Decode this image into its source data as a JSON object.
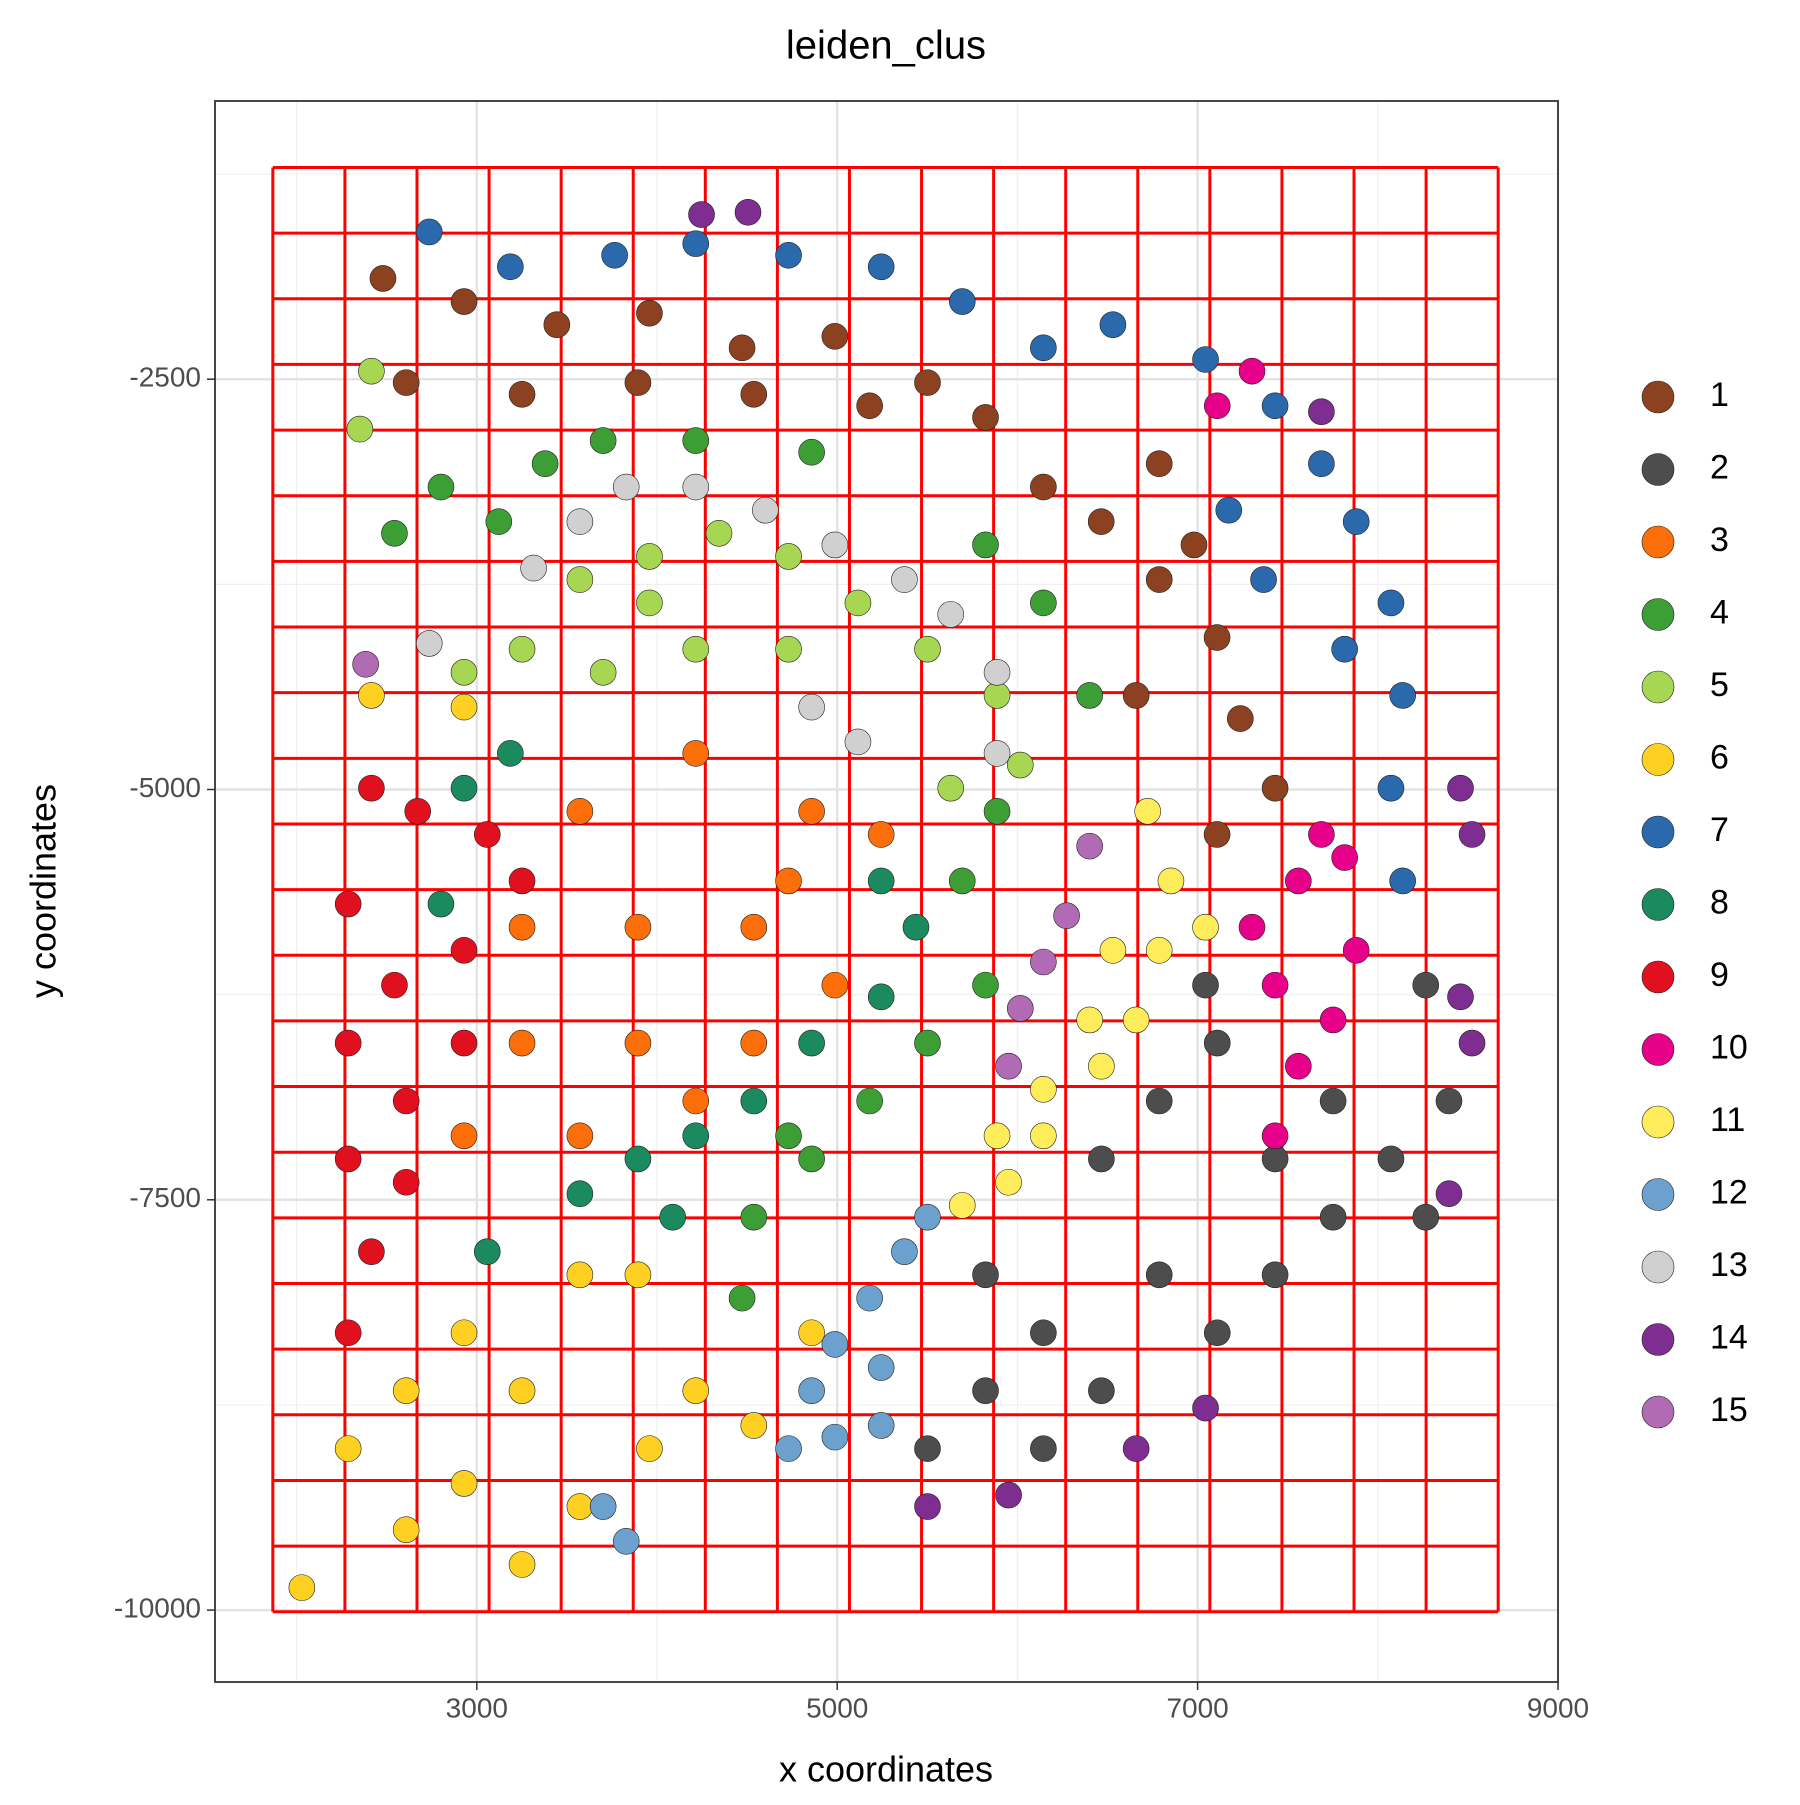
{
  "chart_data": {
    "type": "scatter",
    "title": "leiden_clus",
    "x_label": "x coordinates",
    "y_label": "y coordinates",
    "xlim": [
      1547,
      9000
    ],
    "ylim": [
      -10438,
      -805
    ],
    "xticks": [
      3000,
      5000,
      7000,
      9000
    ],
    "yticks": [
      -2500,
      -5000,
      -7500,
      -10000
    ],
    "grid": true,
    "patch_grid": {
      "x0": 1868,
      "y0": -10010,
      "step": 400,
      "ncols": 17,
      "nrows": 22,
      "color": "#ff0000"
    },
    "series": [
      {
        "name": "1",
        "color": "#8c4220",
        "x": [
          2479,
          2929,
          3444,
          3958,
          4472,
          4987,
          5501,
          5823,
          2608,
          3251,
          3894,
          4537,
          5180,
          6144,
          6465,
          6787,
          7108,
          7237,
          7430,
          7108,
          6787,
          6659,
          6980
        ],
        "values": [
          -1886,
          -2027,
          -2168,
          -2098,
          -2309,
          -2239,
          -2521,
          -2733,
          -2521,
          -2592,
          -2521,
          -2592,
          -2662,
          -3157,
          -3368,
          -3721,
          -4074,
          -4568,
          -4992,
          -5274,
          -3015,
          -4427,
          -3510
        ]
      },
      {
        "name": "2",
        "color": "#4d4d4d",
        "x": [
          5823,
          6144,
          6466,
          6787,
          7109,
          7430,
          7752,
          8073,
          6787,
          7109,
          6144,
          5501,
          5823,
          6466,
          7430,
          8266,
          8395,
          8266,
          7044,
          7752
        ],
        "values": [
          -7957,
          -8310,
          -7251,
          -6898,
          -6545,
          -7251,
          -7606,
          -7251,
          -7957,
          -8310,
          -9016,
          -9016,
          -8663,
          -8663,
          -7957,
          -6192,
          -6898,
          -7606,
          -6192,
          -6898
        ]
      },
      {
        "name": "3",
        "color": "#fb6e0a",
        "x": [
          3572,
          4215,
          4858,
          5244,
          3251,
          3894,
          4537,
          4987,
          3251,
          3894,
          4537,
          2929,
          3572,
          4215,
          4730
        ],
        "values": [
          -5133,
          -4780,
          -5133,
          -5274,
          -5839,
          -5839,
          -5839,
          -6192,
          -6545,
          -6545,
          -6545,
          -7110,
          -7110,
          -6898,
          -5557
        ]
      },
      {
        "name": "4",
        "color": "#3e9e36",
        "x": [
          2543,
          2801,
          3122,
          3379,
          3701,
          4215,
          4858,
          5823,
          6144,
          6401,
          5887,
          5694,
          5823,
          5501,
          5180,
          4858,
          4537,
          4472,
          4730
        ],
        "values": [
          -3439,
          -3157,
          -3368,
          -3015,
          -2874,
          -2874,
          -2945,
          -3510,
          -3863,
          -4427,
          -5133,
          -5557,
          -6192,
          -6545,
          -6898,
          -7251,
          -7606,
          -8099,
          -7110
        ]
      },
      {
        "name": "5",
        "color": "#a6d652",
        "x": [
          3572,
          3958,
          4344,
          4730,
          5115,
          5501,
          3251,
          3701,
          4215,
          4730,
          5887,
          6016,
          5630,
          2415,
          2351,
          2929,
          3958
        ],
        "values": [
          -3721,
          -3580,
          -3439,
          -3580,
          -3863,
          -4145,
          -4145,
          -4286,
          -4145,
          -4145,
          -4427,
          -4851,
          -4992,
          -2451,
          -2804,
          -4286,
          -3863
        ]
      },
      {
        "name": "6",
        "color": "#fdd021",
        "x": [
          2286,
          2608,
          2929,
          3251,
          3572,
          3894,
          4215,
          2929,
          3572,
          2608,
          3251,
          2029,
          4537,
          4858,
          3958,
          2929,
          2415
        ],
        "values": [
          -9016,
          -8663,
          -8310,
          -8663,
          -7957,
          -7957,
          -8663,
          -9228,
          -9369,
          -9510,
          -9722,
          -9863,
          -8875,
          -8310,
          -9016,
          -4498,
          -4427
        ]
      },
      {
        "name": "7",
        "color": "#2b69ad",
        "x": [
          3765,
          4215,
          4730,
          5244,
          5694,
          6144,
          6530,
          7044,
          7430,
          7687,
          7880,
          8073,
          8138,
          8073,
          8138,
          3186,
          2736,
          7173,
          7366,
          7816
        ],
        "values": [
          -1745,
          -1674,
          -1745,
          -1815,
          -2027,
          -2309,
          -2168,
          -2380,
          -2662,
          -3015,
          -3368,
          -3863,
          -4427,
          -4992,
          -5557,
          -1815,
          -1603,
          -3298,
          -3721,
          -4145
        ]
      },
      {
        "name": "8",
        "color": "#1b8a5f",
        "x": [
          5244,
          5437,
          5244,
          4858,
          4537,
          4215,
          3894,
          3572,
          3058,
          2929,
          3186,
          2801,
          4087
        ],
        "values": [
          -5557,
          -5839,
          -6263,
          -6545,
          -6898,
          -7110,
          -7251,
          -7463,
          -7816,
          -4992,
          -4780,
          -5698,
          -7606
        ]
      },
      {
        "name": "9",
        "color": "#e0101f",
        "x": [
          2415,
          2672,
          3058,
          2286,
          2543,
          2929,
          3251,
          2286,
          2608,
          2929,
          2286,
          2415,
          2286,
          2608
        ],
        "values": [
          -4992,
          -5133,
          -5274,
          -5698,
          -6192,
          -5980,
          -5557,
          -6545,
          -6898,
          -6545,
          -7251,
          -7816,
          -8310,
          -7393
        ]
      },
      {
        "name": "10",
        "color": "#e6008a",
        "x": [
          7302,
          7559,
          7816,
          7430,
          7752,
          7559,
          7430,
          7687,
          7880,
          7109,
          7302
        ],
        "values": [
          -5839,
          -5557,
          -5415,
          -6192,
          -6404,
          -6686,
          -7110,
          -5274,
          -5980,
          -2662,
          -2451
        ]
      },
      {
        "name": "11",
        "color": "#ffec5a",
        "x": [
          6723,
          6852,
          6530,
          6787,
          6401,
          6659,
          6144,
          6466,
          5887,
          6144,
          5694,
          5951,
          7044
        ],
        "values": [
          -5133,
          -5557,
          -5980,
          -5980,
          -6404,
          -6404,
          -6827,
          -6686,
          -7110,
          -7110,
          -7534,
          -7393,
          -5839
        ]
      },
      {
        "name": "12",
        "color": "#6ba1cc",
        "x": [
          5373,
          5180,
          4987,
          4858,
          5244,
          4987,
          5244,
          4730,
          3701,
          3829,
          5501
        ],
        "values": [
          -7816,
          -8099,
          -8381,
          -8663,
          -8522,
          -8946,
          -8875,
          -9016,
          -9369,
          -9581,
          -7606
        ]
      },
      {
        "name": "13",
        "color": "#d0d0d0",
        "x": [
          3315,
          3572,
          3829,
          4215,
          4601,
          4987,
          5373,
          5630,
          5887,
          5887,
          4858,
          5115,
          2736
        ],
        "values": [
          -3651,
          -3368,
          -3157,
          -3157,
          -3298,
          -3510,
          -3721,
          -3933,
          -4286,
          -4780,
          -4498,
          -4710,
          -4110
        ]
      },
      {
        "name": "14",
        "color": "#7e2d91",
        "x": [
          8459,
          8523,
          8459,
          8523,
          8395,
          5951,
          5501,
          6659,
          7044,
          4247,
          4505,
          7687
        ],
        "values": [
          -4992,
          -5274,
          -6263,
          -6545,
          -7463,
          -9299,
          -9369,
          -9016,
          -8769,
          -1497,
          -1483,
          -2698
        ]
      },
      {
        "name": "15",
        "color": "#b06bb4",
        "x": [
          6401,
          6273,
          6144,
          6016,
          5951,
          2383
        ],
        "values": [
          -5345,
          -5769,
          -6051,
          -6334,
          -6686,
          -4237
        ]
      }
    ]
  }
}
